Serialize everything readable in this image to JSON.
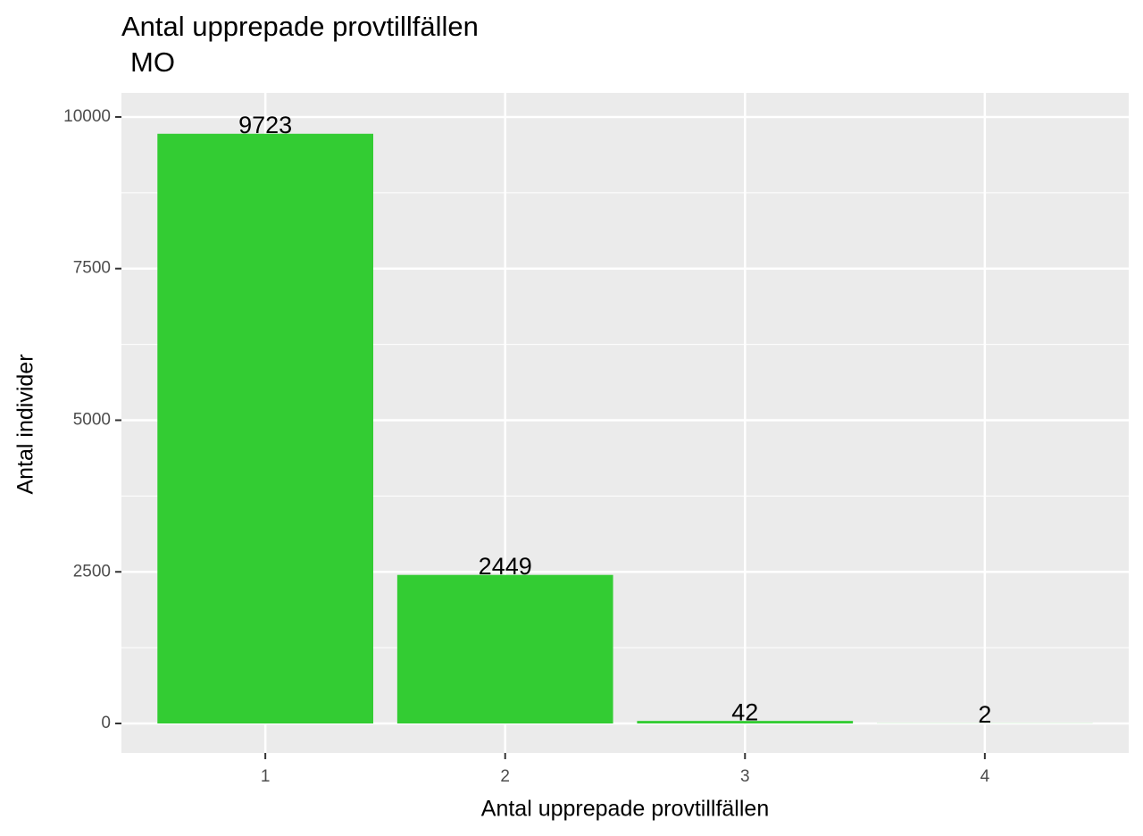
{
  "chart_data": {
    "type": "bar",
    "title": "Antal upprepade provtillfällen",
    "subtitle": "MO",
    "x_label": "Antal upprepade provtillfällen",
    "y_label": "Antal individer",
    "categories": [
      "1",
      "2",
      "3",
      "4"
    ],
    "values": [
      9723,
      2449,
      42,
      2
    ],
    "color": "#33cc33",
    "ylim": [
      -486,
      10397
    ],
    "yticks": [
      0,
      2500,
      5000,
      7500,
      10000
    ],
    "grid": true
  }
}
